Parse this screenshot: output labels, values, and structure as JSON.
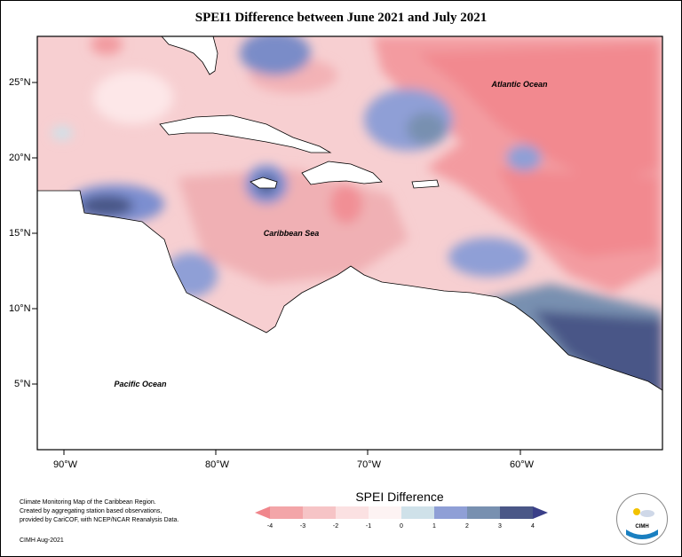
{
  "title": "SPEI1 Difference between June 2021 and July 2021",
  "axes": {
    "lat_labels": [
      "25°N",
      "20°N",
      "15°N",
      "10°N",
      "5°N"
    ],
    "lon_labels": [
      "90°W",
      "80°W",
      "70°W",
      "60°W"
    ]
  },
  "region_labels": {
    "atlantic": "Atlantic Ocean",
    "caribbean": "Caribbean Sea",
    "pacific": "Pacific Ocean"
  },
  "legend": {
    "title": "SPEI Difference",
    "ticks": [
      "-4",
      "-3",
      "-2",
      "-1",
      "0",
      "1",
      "2",
      "3",
      "4"
    ],
    "colors": [
      "#f0868c",
      "#f3a5a8",
      "#f6c4c6",
      "#fbe1e2",
      "#fdf3f3",
      "#cfe1e9",
      "#8f9fd6",
      "#7890b0",
      "#4a5787",
      "#3a3f88"
    ]
  },
  "credits": {
    "line1": "Climate Monitoring Map of the Caribbean Region.",
    "line2": "Created by aggregating station based observations,",
    "line3": "provided by CariCOF, with NCEP/NCAR Reanalysis Data.",
    "date": "CIMH Aug-2021"
  },
  "logo": {
    "text": "CIMH"
  }
}
